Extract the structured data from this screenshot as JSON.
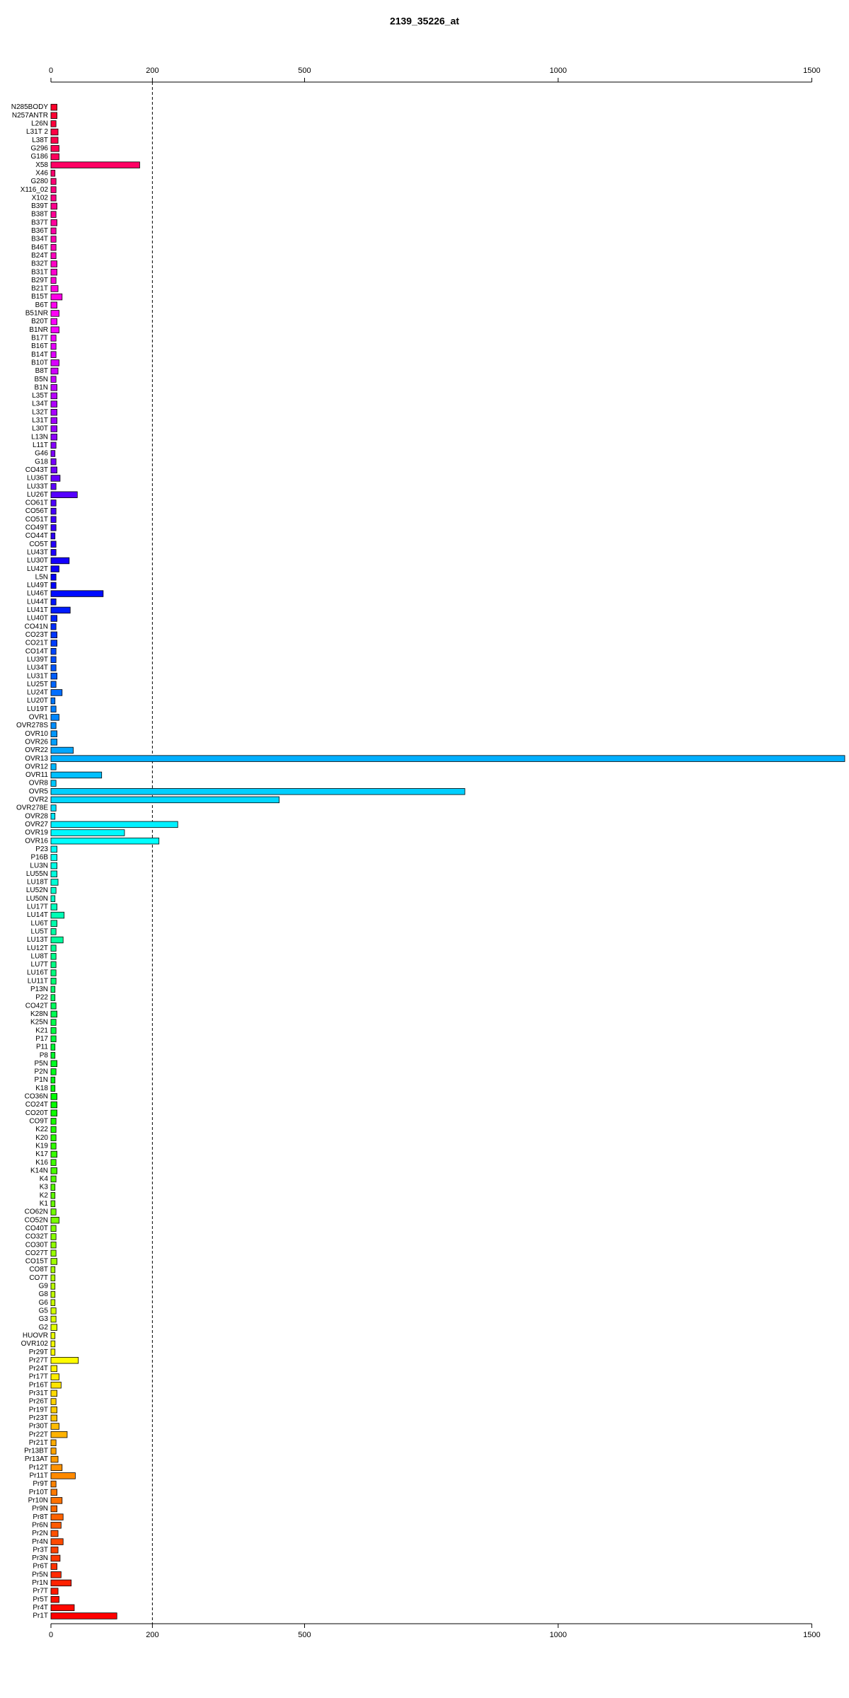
{
  "chart_data": {
    "type": "barh",
    "title": "2139_35226_at",
    "categories": [
      "N285BODY",
      "N257ANTR",
      "L26N",
      "L31T 2",
      "L38T",
      "G296",
      "G186",
      "X58",
      "X46",
      "G280",
      "X116_02",
      "X102",
      "B39T",
      "B38T",
      "B37T",
      "B36T",
      "B34T",
      "B46T",
      "B24T",
      "B32T",
      "B31T",
      "B29T",
      "B21T",
      "B15T",
      "B6T",
      "B51NR",
      "B20T",
      "B1NR",
      "B17T",
      "B16T",
      "B14T",
      "B10T",
      "B8T",
      "B5N",
      "B1N",
      "L35T",
      "L34T",
      "L32T",
      "L31T",
      "L30T",
      "L13N",
      "L11T",
      "G46",
      "G18",
      "CO43T",
      "LU36T",
      "LU33T",
      "LU26T",
      "CO61T",
      "CO56T",
      "CO51T",
      "CO49T",
      "CO44T",
      "CO5T",
      "LU43T",
      "LU30T",
      "LU42T",
      "L5N",
      "LU49T",
      "LU46T",
      "LU44T",
      "LU41T",
      "LU40T",
      "CO41N",
      "CO23T",
      "CO21T",
      "CO14T",
      "LU39T",
      "LU34T",
      "LU31T",
      "LU25T",
      "LU24T",
      "LU20T",
      "LU19T",
      "OVR1",
      "OVR278S",
      "OVR10",
      "OVR26",
      "OVR22",
      "OVR13",
      "OVR12",
      "OVR11",
      "OVR8",
      "OVR5",
      "OVR2",
      "OVR278E",
      "OVR28",
      "OVR27",
      "OVR19",
      "OVR16",
      "P23",
      "P16B",
      "LU3N",
      "LU55N",
      "LU18T",
      "LU52N",
      "LU50N",
      "LU17T",
      "LU14T",
      "LU6T",
      "LU5T",
      "LU13T",
      "LU12T",
      "LU8T",
      "LU7T",
      "LU16T",
      "LU11T",
      "P13N",
      "P22",
      "CO42T",
      "K28N",
      "K25N",
      "K21",
      "P17",
      "P11",
      "P8",
      "P5N",
      "P2N",
      "P1N",
      "K18",
      "CO36N",
      "CO24T",
      "CO20T",
      "CO9T",
      "K22",
      "K20",
      "K19",
      "K17",
      "K16",
      "K14N",
      "K4",
      "K3",
      "K2",
      "K1",
      "CO62N",
      "CO52N",
      "CO40T",
      "CO32T",
      "CO30T",
      "CO27T",
      "CO15T",
      "CO8T",
      "CO7T",
      "G9",
      "G8",
      "G6",
      "G5",
      "G3",
      "G2",
      "HUOVR",
      "OVR102",
      "Pr29T",
      "Pr27T",
      "Pr24T",
      "Pr17T",
      "Pr16T",
      "Pr31T",
      "Pr26T",
      "Pr19T",
      "Pr23T",
      "Pr30T",
      "Pr22T",
      "Pr21T",
      "Pr13BT",
      "Pr13AT",
      "Pr12T",
      "Pr11T",
      "Pr9T",
      "Pr10T",
      "Pr10N",
      "Pr9N",
      "Pr8T",
      "Pr6N",
      "Pr2N",
      "Pr4N",
      "Pr3T",
      "Pr3N",
      "Pr6T",
      "Pr5N",
      "Pr1N",
      "Pr7T",
      "Pr5T",
      "Pr4T",
      "Pr1T"
    ],
    "values": [
      12,
      12,
      10,
      14,
      14,
      16,
      16,
      175,
      8,
      10,
      10,
      10,
      12,
      10,
      12,
      10,
      10,
      10,
      10,
      12,
      12,
      10,
      14,
      22,
      12,
      16,
      12,
      16,
      10,
      10,
      10,
      16,
      14,
      10,
      12,
      12,
      12,
      12,
      12,
      12,
      12,
      10,
      8,
      10,
      12,
      18,
      10,
      52,
      10,
      10,
      10,
      10,
      8,
      10,
      10,
      36,
      16,
      10,
      10,
      103,
      10,
      38,
      12,
      10,
      12,
      12,
      10,
      10,
      10,
      12,
      10,
      22,
      8,
      10,
      16,
      10,
      12,
      12,
      44,
      1565,
      10,
      100,
      10,
      816,
      450,
      10,
      8,
      250,
      145,
      213,
      12,
      12,
      12,
      12,
      14,
      10,
      8,
      12,
      26,
      12,
      10,
      24,
      10,
      10,
      10,
      10,
      10,
      8,
      8,
      10,
      12,
      10,
      10,
      10,
      8,
      8,
      12,
      10,
      8,
      8,
      12,
      12,
      12,
      10,
      10,
      10,
      10,
      12,
      10,
      12,
      10,
      8,
      8,
      8,
      10,
      16,
      10,
      10,
      10,
      10,
      12,
      8,
      8,
      8,
      8,
      8,
      10,
      10,
      12,
      8,
      8,
      8,
      54,
      12,
      16,
      20,
      12,
      10,
      12,
      12,
      16,
      32,
      10,
      10,
      14,
      22,
      48,
      10,
      12,
      22,
      12,
      24,
      20,
      14,
      24,
      14,
      18,
      12,
      20,
      40,
      14,
      16,
      46,
      130
    ],
    "palette": "rainbow",
    "hue_range": [
      350,
      0
    ],
    "xlim": [
      0,
      1565
    ],
    "xticks": [
      0,
      200,
      500,
      1000,
      1500
    ],
    "reference_line": 200
  }
}
